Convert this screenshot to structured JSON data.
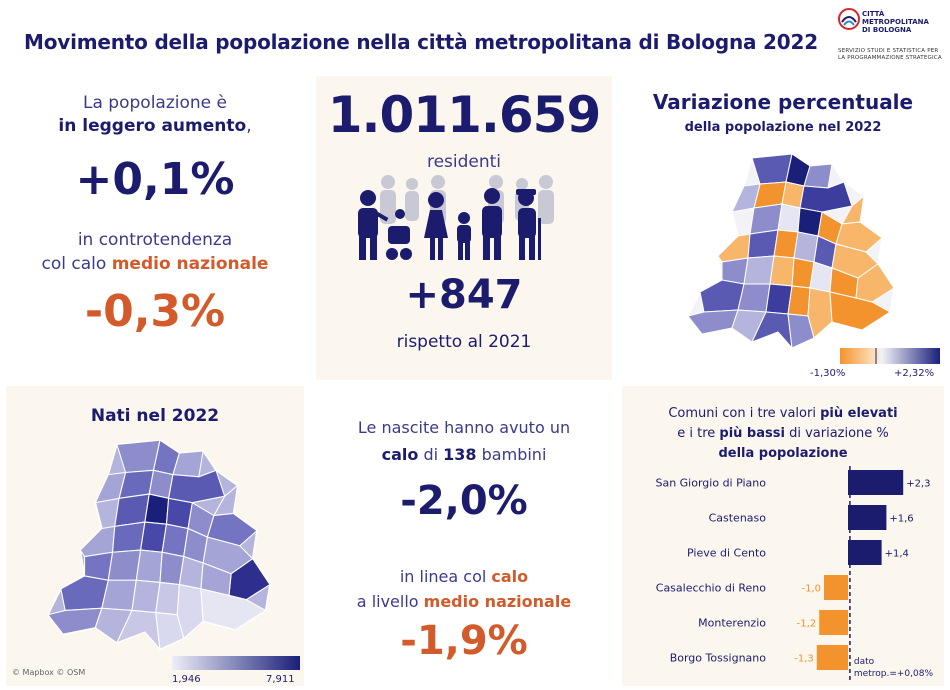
{
  "header": {
    "title": "Movimento della popolazione nella città metropolitana di Bologna 2022"
  },
  "logo": {
    "name_lines": [
      "CITTÀ",
      "METROPOLITANA",
      "DI BOLOGNA"
    ],
    "subtitle_lines": [
      "SERVIZIO STUDI E STATISTICA PER",
      "LA PROGRAMMAZIONE STRATEGICA"
    ]
  },
  "population": {
    "intro_a": "La popolazione è",
    "intro_b_bold": "in leggero aumento",
    "intro_b_tail": ",",
    "change_pct": "+0,1%",
    "trend_a": "in controtendenza",
    "trend_b_pre": "col calo ",
    "trend_b_bold": "medio nazionale",
    "national_pct": "-0,3%"
  },
  "residents": {
    "total": "1.011.659",
    "label": "residenti",
    "delta": "+847",
    "compare": "rispetto al 2021",
    "icon": "family-icon"
  },
  "variation_map": {
    "title": "Variazione percentuale",
    "subtitle": "della popolazione nel 2022",
    "legend_min": "-1,30%",
    "legend_max": "+2,32%",
    "colors": {
      "low": "#f3932e",
      "mid": "#f2f2f7",
      "high": "#1a1f7a"
    }
  },
  "births_map": {
    "title": "Nati nel 2022",
    "credit": "© Mapbox © OSM",
    "legend_min": "1,946",
    "legend_max": "7,911",
    "colors": {
      "low": "#eeeef8",
      "high": "#1a1f7a"
    }
  },
  "births": {
    "line1": "Le nascite hanno avuto un",
    "line2_b1": "calo",
    "line2_m": " di ",
    "line2_b2": "138",
    "line2_t": " bambini",
    "pct": "-2,0%",
    "line3_pre": "in linea col ",
    "line3_bold": "calo",
    "line4_pre": "a livello ",
    "line4_bold": "medio nazionale",
    "national_pct": "-1,9%"
  },
  "ranking": {
    "title_a_pre": "Comuni con i tre valori ",
    "title_a_bold": "più elevati",
    "title_b_pre": "e i tre ",
    "title_b_bold": "più bassi",
    "title_b_post": " di variazione %",
    "title_c": "della popolazione",
    "ref_label_1": "dato",
    "ref_label_2": "metrop.=+0,08%"
  },
  "chart_data": {
    "type": "bar",
    "orientation": "horizontal",
    "categories": [
      "San Giorgio di Piano",
      "Castenaso",
      "Pieve di Cento",
      "Casalecchio di Reno",
      "Monterenzio",
      "Borgo Tossignano"
    ],
    "values": [
      2.3,
      1.6,
      1.4,
      -1.0,
      -1.2,
      -1.3
    ],
    "value_labels": [
      "+2,3",
      "+1,6",
      "+1,4",
      "-1,0",
      "-1,2",
      "-1,3"
    ],
    "reference_line": 0.08,
    "colors": {
      "positive": "#1c1c6e",
      "negative": "#f3932e"
    }
  }
}
